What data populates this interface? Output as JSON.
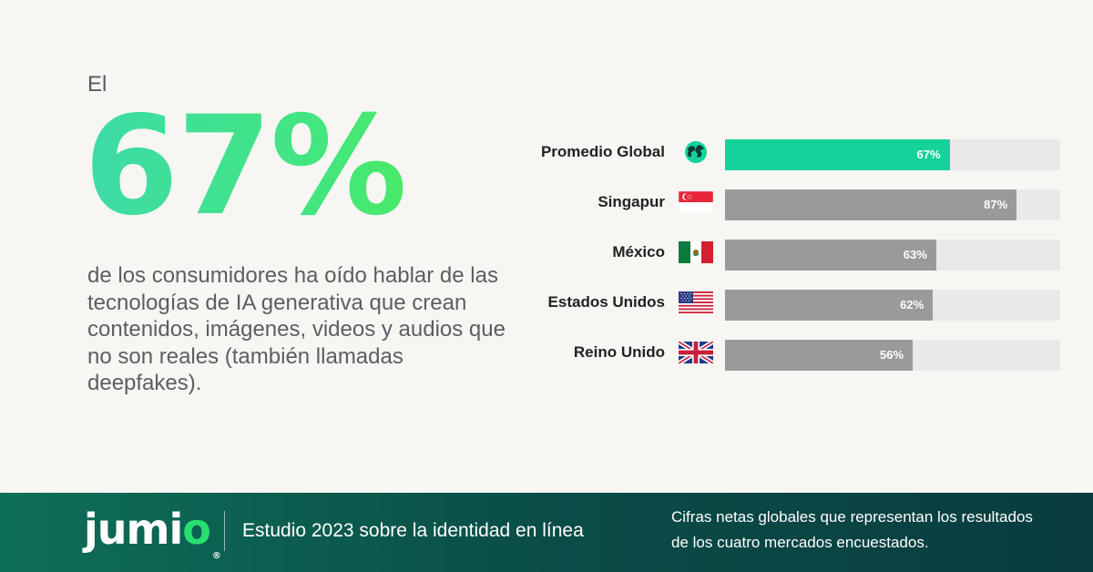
{
  "headline": {
    "intro": "El",
    "percent": "67%",
    "description": "de los consumidores ha oído hablar de las tecnologías de IA generativa que crean contenidos, imágenes, videos y audios que no son reales (también llamadas deepfakes)."
  },
  "chart_data": {
    "type": "bar",
    "orientation": "horizontal",
    "categories": [
      "Promedio Global",
      "Singapur",
      "México",
      "Estados Unidos",
      "Reino Unido"
    ],
    "values": [
      67,
      87,
      63,
      62,
      56
    ],
    "value_labels": [
      "67%",
      "87%",
      "63%",
      "62%",
      "56%"
    ],
    "icons": [
      "globe-icon",
      "singapore-flag-icon",
      "mexico-flag-icon",
      "usa-flag-icon",
      "uk-flag-icon"
    ],
    "xlim": [
      0,
      100
    ],
    "highlight_color": "#14d29a",
    "bar_color": "#9a9a9a",
    "track_color": "#e9e9e9"
  },
  "footer": {
    "logo": "jumio",
    "study_title": "Estudio 2023 sobre la identidad en línea",
    "note": "Cifras netas globales que representan los resultados de los cuatro mercados encuestados."
  }
}
